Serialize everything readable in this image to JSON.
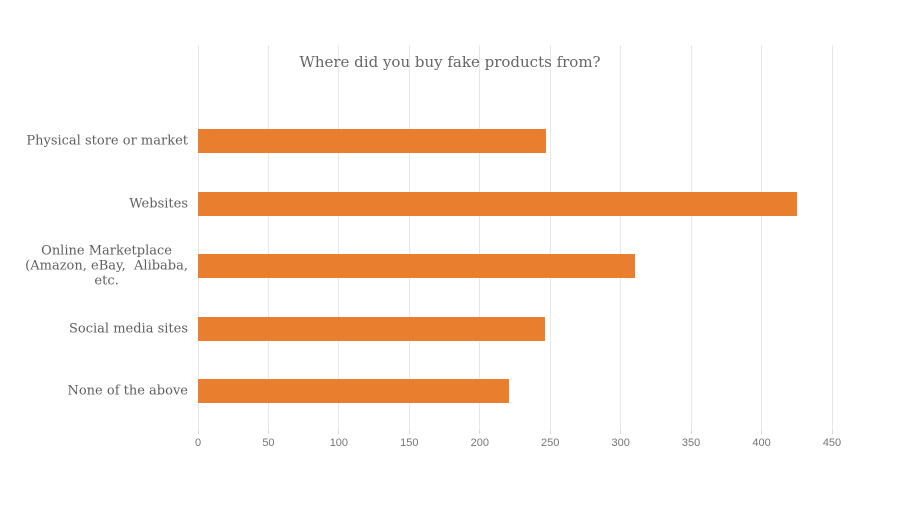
{
  "chart_data": {
    "type": "bar",
    "orientation": "horizontal",
    "title": "Where did you buy fake products from?",
    "categories": [
      "Physical store or market",
      "Websites",
      "Online Marketplace (Amazon, eBay,  Alibaba, etc.",
      "Social media sites",
      "None of the above"
    ],
    "category_lines": [
      [
        "Physical store or market"
      ],
      [
        "Websites"
      ],
      [
        "Online Marketplace",
        "(Amazon, eBay,  Alibaba,",
        "etc."
      ],
      [
        "Social media sites"
      ],
      [
        "None of the above"
      ]
    ],
    "values": [
      247,
      425,
      310,
      246,
      221
    ],
    "xlim": [
      0,
      450
    ],
    "xticks": [
      0,
      50,
      100,
      150,
      200,
      250,
      300,
      350,
      400,
      450
    ],
    "grid": "vertical-only",
    "legend": "none",
    "data_labels": "none",
    "bar_color": "#e87e2e",
    "colors": {
      "background": "#ffffff",
      "title": "#666666",
      "category_label": "#5f5f5f",
      "tick_label": "#757575",
      "gridline": "#e7e7e7",
      "tick_mark": "#d9d9d9"
    }
  }
}
